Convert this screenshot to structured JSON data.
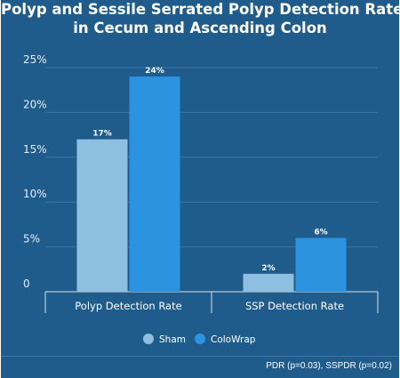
{
  "chart_data": {
    "type": "bar",
    "title_lines": [
      "Polyp and Sessile Serrated Polyp Detection Rate",
      "in Cecum and Ascending Colon"
    ],
    "categories": [
      "Polyp Detection Rate",
      "SSP Detection Rate"
    ],
    "series": [
      {
        "name": "Sham",
        "values": [
          17,
          2
        ],
        "labels": [
          "17%",
          "2%"
        ],
        "color": "#8fbfe0"
      },
      {
        "name": "ColoWrap",
        "values": [
          24,
          6
        ],
        "labels": [
          "24%",
          "6%"
        ],
        "color": "#2b93e0"
      }
    ],
    "ylim": [
      0,
      25
    ],
    "yticks": [
      0,
      5,
      10,
      15,
      20,
      25
    ],
    "ytick_labels": [
      "0",
      "5%",
      "10%",
      "15%",
      "20%",
      "25%"
    ],
    "grid": true,
    "legend_position": "bottom-center"
  },
  "footer": {
    "note": "PDR (p=0.03), SSPDR (p=0.02)"
  },
  "colors": {
    "background": "#1f5c8c",
    "gridline": "#3f76a3"
  }
}
